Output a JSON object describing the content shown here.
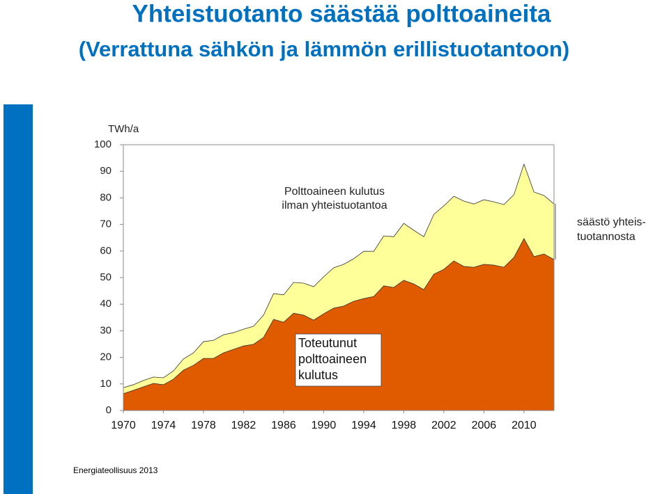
{
  "chart_data": {
    "type": "area",
    "title": "Yhteistuotanto säästää polttoaineita",
    "subtitle": "(Verrattuna sähkön ja lämmön erillistuotantoon)",
    "y_axis_label": "TWh/a",
    "source": "Energiateollisuus 2013",
    "x": [
      1970,
      1971,
      1972,
      1973,
      1974,
      1975,
      1976,
      1977,
      1978,
      1979,
      1980,
      1981,
      1982,
      1983,
      1984,
      1985,
      1986,
      1987,
      1988,
      1989,
      1990,
      1991,
      1992,
      1993,
      1994,
      1995,
      1996,
      1997,
      1998,
      1999,
      2000,
      2001,
      2002,
      2003,
      2004,
      2005,
      2006,
      2007,
      2008,
      2009,
      2010,
      2011,
      2012,
      2013
    ],
    "series": [
      {
        "color": "#ffff99",
        "values": [
          8.6,
          9.7,
          11.3,
          12.6,
          12.3,
          14.9,
          19.4,
          21.7,
          25.9,
          26.4,
          28.5,
          29.3,
          30.6,
          31.7,
          35.9,
          44.0,
          43.5,
          48.2,
          47.9,
          46.6,
          50.3,
          53.7,
          55.0,
          57.1,
          59.9,
          59.9,
          65.7,
          65.4,
          70.4,
          67.8,
          65.4,
          73.8,
          77.0,
          80.6,
          78.8,
          77.7,
          79.3,
          78.5,
          77.5,
          81.2,
          92.7,
          82.2,
          80.9,
          77.7
        ]
      },
      {
        "color": "#e05a00",
        "values": [
          6.3,
          7.6,
          8.9,
          10.2,
          9.7,
          11.8,
          15.2,
          17.0,
          19.6,
          19.6,
          21.7,
          23.0,
          24.3,
          24.9,
          27.5,
          34.3,
          33.2,
          36.6,
          35.9,
          34.0,
          36.4,
          38.5,
          39.3,
          41.1,
          42.1,
          42.9,
          46.9,
          46.3,
          49.0,
          47.6,
          45.5,
          51.3,
          53.1,
          56.3,
          54.2,
          53.9,
          55.0,
          54.7,
          53.9,
          57.6,
          64.7,
          57.9,
          58.9,
          56.8
        ]
      }
    ],
    "annotations": [
      [
        "Polttoaineen kulutus",
        "ilman yhteistuotantoa"
      ],
      [
        "Toteutunut",
        "polttoaineen",
        "kulutus"
      ],
      [
        "säästö yhteis-",
        "tuotannosta"
      ]
    ],
    "xlim": [
      1970,
      2013
    ],
    "xticks": [
      1970,
      1974,
      1978,
      1982,
      1986,
      1990,
      1994,
      1998,
      2002,
      2006,
      2010
    ],
    "ylim": [
      0,
      100
    ],
    "yticks": [
      0,
      10,
      20,
      30,
      40,
      50,
      60,
      70,
      80,
      90,
      100
    ]
  }
}
